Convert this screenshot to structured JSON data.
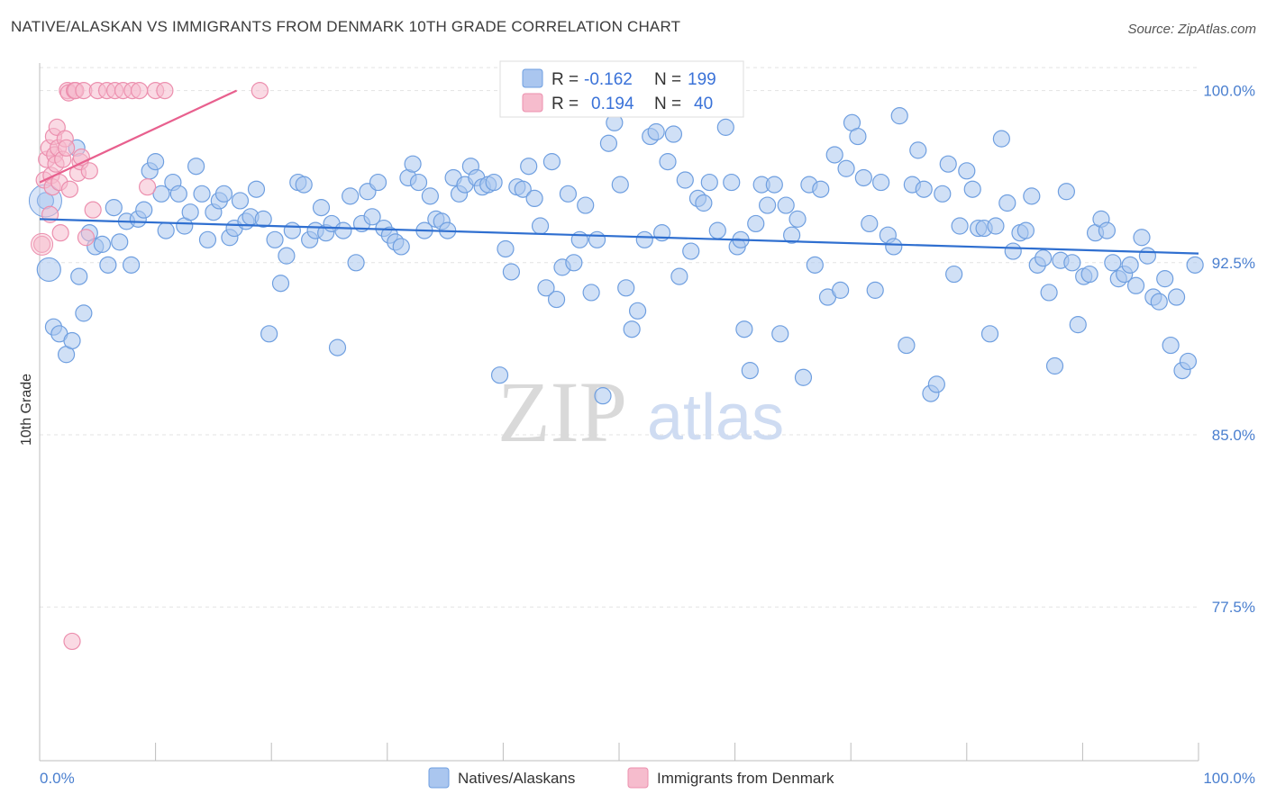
{
  "title": "NATIVE/ALASKAN VS IMMIGRANTS FROM DENMARK 10TH GRADE CORRELATION CHART",
  "source": "Source: ZipAtlas.com",
  "colors": {
    "blue_fill": "#aac6ef",
    "blue_stroke": "#6f9fe0",
    "blue_line": "#2f6fd0",
    "pink_fill": "#f6bccd",
    "pink_stroke": "#ec8fae",
    "pink_line": "#e8608e",
    "grid": "#e3e3e3",
    "axis_text": "#4a7fcf"
  },
  "watermark": {
    "zip": "ZIP",
    "atlas": "atlas"
  },
  "stats": {
    "r_label": "R =",
    "n_label": "N =",
    "series1_r": "-0.162",
    "series1_n": "199",
    "series2_r": "0.194",
    "series2_n": "40"
  },
  "chart_data": {
    "type": "scatter",
    "title": "NATIVE/ALASKAN VS IMMIGRANTS FROM DENMARK 10TH GRADE CORRELATION CHART",
    "xlabel": "",
    "ylabel": "10th Grade",
    "xlim": [
      0,
      100
    ],
    "ylim": [
      70.8,
      101.2
    ],
    "x_tick_labels": [
      "0.0%",
      "100.0%"
    ],
    "y_ticks": [
      100.0,
      92.5,
      85.0,
      77.5
    ],
    "y_tick_labels": [
      "100.0%",
      "92.5%",
      "85.0%",
      "77.5%"
    ],
    "legend": [
      "Natives/Alaskans",
      "Immigrants from Denmark"
    ],
    "series": [
      {
        "name": "Natives/Alaskans",
        "trend": {
          "x": [
            0,
            100
          ],
          "y": [
            94.4,
            92.9
          ]
        },
        "points": [
          [
            0.5,
            95.2,
            1
          ],
          [
            0.8,
            92.2,
            2
          ],
          [
            1.2,
            89.7,
            1
          ],
          [
            1.7,
            89.4,
            1
          ],
          [
            2.3,
            88.5,
            1
          ],
          [
            2.8,
            89.1,
            1
          ],
          [
            3.4,
            91.9,
            1
          ],
          [
            3.8,
            90.3,
            1
          ],
          [
            4.3,
            93.8,
            1
          ],
          [
            4.8,
            93.2,
            1
          ],
          [
            5.4,
            93.3,
            1
          ],
          [
            5.9,
            92.4,
            1
          ],
          [
            6.4,
            94.9,
            1
          ],
          [
            6.9,
            93.4,
            1
          ],
          [
            7.5,
            94.3,
            1
          ],
          [
            7.9,
            92.4,
            1
          ],
          [
            8.5,
            94.4,
            1
          ],
          [
            9.0,
            94.8,
            1
          ],
          [
            9.5,
            96.5,
            1
          ],
          [
            10.0,
            96.9,
            1
          ],
          [
            10.5,
            95.5,
            1
          ],
          [
            10.9,
            93.9,
            1
          ],
          [
            11.5,
            96.0,
            1
          ],
          [
            12.0,
            95.5,
            1
          ],
          [
            12.5,
            94.1,
            1
          ],
          [
            13.0,
            94.7,
            1
          ],
          [
            13.5,
            96.7,
            1
          ],
          [
            14.0,
            95.5,
            1
          ],
          [
            14.5,
            93.5,
            1
          ],
          [
            15.0,
            94.7,
            1
          ],
          [
            15.5,
            95.2,
            1
          ],
          [
            15.9,
            95.5,
            1
          ],
          [
            16.4,
            93.6,
            1
          ],
          [
            16.8,
            94.0,
            1
          ],
          [
            17.3,
            95.2,
            1
          ],
          [
            17.8,
            94.3,
            1
          ],
          [
            18.2,
            94.5,
            1
          ],
          [
            18.7,
            95.7,
            1
          ],
          [
            19.3,
            94.4,
            1
          ],
          [
            19.8,
            89.4,
            1
          ],
          [
            20.3,
            93.5,
            1
          ],
          [
            20.8,
            91.6,
            1
          ],
          [
            21.3,
            92.8,
            1
          ],
          [
            21.8,
            93.9,
            1
          ],
          [
            22.3,
            96.0,
            1
          ],
          [
            22.8,
            95.9,
            1
          ],
          [
            23.3,
            93.5,
            1
          ],
          [
            23.8,
            93.9,
            1
          ],
          [
            24.3,
            94.9,
            1
          ],
          [
            24.7,
            93.8,
            1
          ],
          [
            25.2,
            94.2,
            1
          ],
          [
            25.7,
            88.8,
            1
          ],
          [
            26.2,
            93.9,
            1
          ],
          [
            26.8,
            95.4,
            1
          ],
          [
            27.3,
            92.5,
            1
          ],
          [
            27.8,
            94.2,
            1
          ],
          [
            28.3,
            95.6,
            1
          ],
          [
            28.7,
            94.5,
            1
          ],
          [
            29.2,
            96.0,
            1
          ],
          [
            29.7,
            94.0,
            1
          ],
          [
            30.2,
            93.7,
            1
          ],
          [
            30.7,
            93.4,
            1
          ],
          [
            31.2,
            93.2,
            1
          ],
          [
            31.8,
            96.2,
            1
          ],
          [
            32.2,
            96.8,
            1
          ],
          [
            32.7,
            96.0,
            1
          ],
          [
            33.2,
            93.9,
            1
          ],
          [
            33.7,
            95.4,
            1
          ],
          [
            34.2,
            94.4,
            1
          ],
          [
            34.7,
            94.3,
            1
          ],
          [
            35.2,
            93.9,
            1
          ],
          [
            35.7,
            96.2,
            1
          ],
          [
            36.2,
            95.5,
            1
          ],
          [
            36.7,
            95.9,
            1
          ],
          [
            37.2,
            96.7,
            1
          ],
          [
            37.7,
            96.2,
            1
          ],
          [
            38.2,
            95.8,
            1
          ],
          [
            38.7,
            95.9,
            1
          ],
          [
            39.2,
            96.0,
            1
          ],
          [
            39.7,
            87.6,
            1
          ],
          [
            40.2,
            93.1,
            1
          ],
          [
            40.7,
            92.1,
            1
          ],
          [
            41.2,
            95.8,
            1
          ],
          [
            41.7,
            95.7,
            1
          ],
          [
            42.2,
            96.7,
            1
          ],
          [
            42.7,
            95.3,
            1
          ],
          [
            43.2,
            94.1,
            1
          ],
          [
            43.7,
            91.4,
            1
          ],
          [
            44.2,
            96.9,
            1
          ],
          [
            44.6,
            90.9,
            1
          ],
          [
            45.1,
            92.3,
            1
          ],
          [
            45.6,
            95.5,
            1
          ],
          [
            46.1,
            92.5,
            1
          ],
          [
            46.6,
            93.5,
            1
          ],
          [
            47.1,
            95.0,
            1
          ],
          [
            47.6,
            91.2,
            1
          ],
          [
            48.1,
            93.5,
            1
          ],
          [
            48.6,
            86.7,
            1
          ],
          [
            49.1,
            97.7,
            1
          ],
          [
            49.6,
            98.6,
            1
          ],
          [
            50.1,
            95.9,
            1
          ],
          [
            50.6,
            91.4,
            1
          ],
          [
            51.1,
            89.6,
            1
          ],
          [
            51.6,
            90.4,
            1
          ],
          [
            52.2,
            93.5,
            1
          ],
          [
            52.7,
            98.0,
            1
          ],
          [
            53.2,
            98.2,
            1
          ],
          [
            53.7,
            93.8,
            1
          ],
          [
            54.2,
            96.9,
            1
          ],
          [
            54.7,
            98.1,
            1
          ],
          [
            55.2,
            91.9,
            1
          ],
          [
            55.7,
            96.1,
            1
          ],
          [
            56.2,
            93.0,
            1
          ],
          [
            56.8,
            95.3,
            1
          ],
          [
            57.3,
            95.1,
            1
          ],
          [
            57.8,
            96.0,
            1
          ],
          [
            58.5,
            93.9,
            1
          ],
          [
            59.2,
            98.4,
            1
          ],
          [
            59.7,
            96.0,
            1
          ],
          [
            60.2,
            93.2,
            1
          ],
          [
            60.8,
            89.6,
            1
          ],
          [
            61.3,
            87.8,
            1
          ],
          [
            61.8,
            94.2,
            1
          ],
          [
            62.3,
            95.9,
            1
          ],
          [
            62.8,
            95.0,
            1
          ],
          [
            63.4,
            95.9,
            1
          ],
          [
            63.9,
            89.4,
            1
          ],
          [
            64.4,
            95.0,
            1
          ],
          [
            64.9,
            93.7,
            1
          ],
          [
            65.4,
            94.4,
            1
          ],
          [
            65.9,
            87.5,
            1
          ],
          [
            66.4,
            95.9,
            1
          ],
          [
            66.9,
            92.4,
            1
          ],
          [
            67.4,
            95.7,
            1
          ],
          [
            68.0,
            91.0,
            1
          ],
          [
            68.6,
            97.2,
            1
          ],
          [
            69.1,
            91.3,
            1
          ],
          [
            69.6,
            96.6,
            1
          ],
          [
            70.1,
            98.6,
            1
          ],
          [
            70.6,
            98.0,
            1
          ],
          [
            71.1,
            96.2,
            1
          ],
          [
            71.6,
            94.2,
            1
          ],
          [
            72.1,
            91.3,
            1
          ],
          [
            72.6,
            96.0,
            1
          ],
          [
            73.2,
            93.7,
            1
          ],
          [
            73.7,
            93.2,
            1
          ],
          [
            74.2,
            98.9,
            1
          ],
          [
            74.8,
            88.9,
            1
          ],
          [
            75.3,
            95.9,
            1
          ],
          [
            75.8,
            97.4,
            1
          ],
          [
            76.3,
            95.7,
            1
          ],
          [
            76.9,
            86.8,
            1
          ],
          [
            77.4,
            87.2,
            1
          ],
          [
            77.9,
            95.5,
            1
          ],
          [
            78.4,
            96.8,
            1
          ],
          [
            78.9,
            92.0,
            1
          ],
          [
            79.4,
            94.1,
            1
          ],
          [
            80.0,
            96.5,
            1
          ],
          [
            80.5,
            95.7,
            1
          ],
          [
            81.0,
            94.0,
            1
          ],
          [
            81.5,
            94.0,
            1
          ],
          [
            82.0,
            89.4,
            1
          ],
          [
            82.5,
            94.1,
            1
          ],
          [
            83.0,
            97.9,
            1
          ],
          [
            83.5,
            95.1,
            1
          ],
          [
            84.0,
            93.0,
            1
          ],
          [
            84.6,
            93.8,
            1
          ],
          [
            85.1,
            93.9,
            1
          ],
          [
            85.6,
            95.4,
            1
          ],
          [
            86.1,
            92.4,
            1
          ],
          [
            86.6,
            92.7,
            1
          ],
          [
            87.1,
            91.2,
            1
          ],
          [
            87.6,
            88.0,
            1
          ],
          [
            88.1,
            92.6,
            1
          ],
          [
            88.6,
            95.6,
            1
          ],
          [
            89.1,
            92.5,
            1
          ],
          [
            89.6,
            89.8,
            1
          ],
          [
            90.1,
            91.9,
            1
          ],
          [
            90.6,
            92.0,
            1
          ],
          [
            91.1,
            93.8,
            1
          ],
          [
            91.6,
            94.4,
            1
          ],
          [
            92.1,
            93.9,
            1
          ],
          [
            92.6,
            92.5,
            1
          ],
          [
            93.1,
            91.8,
            1
          ],
          [
            93.6,
            92.0,
            1
          ],
          [
            94.1,
            92.4,
            1
          ],
          [
            94.6,
            91.5,
            1
          ],
          [
            95.1,
            93.6,
            1
          ],
          [
            95.6,
            92.8,
            1
          ],
          [
            96.1,
            91.0,
            1
          ],
          [
            96.6,
            90.8,
            1
          ],
          [
            97.1,
            91.8,
            1
          ],
          [
            97.6,
            88.9,
            1
          ],
          [
            98.1,
            91.0,
            1
          ],
          [
            98.6,
            87.8,
            1
          ],
          [
            99.1,
            88.2,
            1
          ],
          [
            99.7,
            92.4,
            1
          ],
          [
            3.2,
            97.5,
            1
          ],
          [
            60.5,
            93.5,
            1
          ]
        ]
      },
      {
        "name": "Immigrants from Denmark",
        "trend": {
          "x": [
            0,
            17
          ],
          "y": [
            96.0,
            100.0
          ]
        },
        "points": [
          [
            0.2,
            93.3,
            1
          ],
          [
            0.4,
            96.1,
            1
          ],
          [
            0.6,
            97.0,
            1
          ],
          [
            0.8,
            97.5,
            1
          ],
          [
            0.9,
            94.6,
            1
          ],
          [
            1.0,
            96.3,
            1
          ],
          [
            1.1,
            95.8,
            1
          ],
          [
            1.2,
            98.0,
            1
          ],
          [
            1.3,
            97.2,
            1
          ],
          [
            1.4,
            96.8,
            1
          ],
          [
            1.5,
            98.4,
            1
          ],
          [
            1.6,
            97.5,
            1
          ],
          [
            1.7,
            96.0,
            1
          ],
          [
            1.8,
            93.8,
            1
          ],
          [
            2.0,
            97.0,
            1
          ],
          [
            2.2,
            97.9,
            1
          ],
          [
            2.3,
            97.5,
            1
          ],
          [
            2.4,
            100.0,
            1
          ],
          [
            2.5,
            99.9,
            1
          ],
          [
            2.6,
            95.7,
            1
          ],
          [
            2.8,
            76.0,
            1
          ],
          [
            3.0,
            100.0,
            1
          ],
          [
            3.1,
            100.0,
            1
          ],
          [
            3.3,
            96.4,
            1
          ],
          [
            3.5,
            96.9,
            1
          ],
          [
            3.6,
            97.1,
            1
          ],
          [
            3.8,
            100.0,
            1
          ],
          [
            4.0,
            93.6,
            1
          ],
          [
            4.3,
            96.5,
            1
          ],
          [
            4.6,
            94.8,
            1
          ],
          [
            5.0,
            100.0,
            1
          ],
          [
            5.8,
            100.0,
            1
          ],
          [
            6.5,
            100.0,
            1
          ],
          [
            7.2,
            100.0,
            1
          ],
          [
            8.0,
            100.0,
            1
          ],
          [
            8.6,
            100.0,
            1
          ],
          [
            10.0,
            100.0,
            1
          ],
          [
            10.8,
            100.0,
            1
          ],
          [
            19.0,
            100.0,
            1
          ],
          [
            9.3,
            95.8,
            1
          ]
        ]
      }
    ]
  }
}
